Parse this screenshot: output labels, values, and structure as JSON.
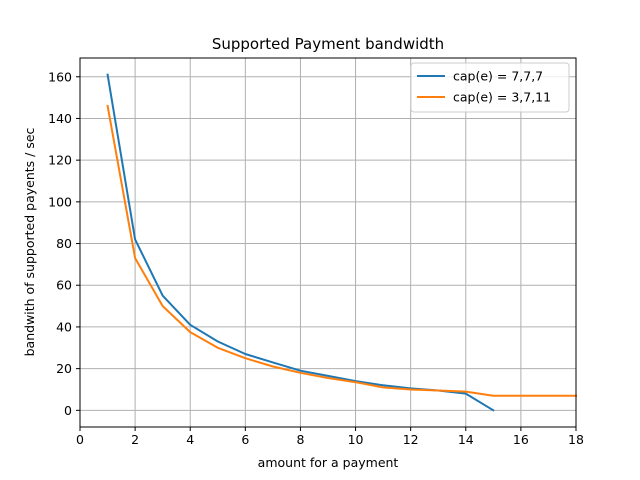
{
  "chart_data": {
    "type": "line",
    "title": "Supported Payment bandwidth",
    "xlabel": "amount for a payment",
    "ylabel": "bandwith of supported payents / sec",
    "xlim": [
      0,
      18
    ],
    "ylim": [
      -8,
      169
    ],
    "xticks": [
      0,
      2,
      4,
      6,
      8,
      10,
      12,
      14,
      16,
      18
    ],
    "yticks": [
      0,
      20,
      40,
      60,
      80,
      100,
      120,
      140,
      160
    ],
    "grid": true,
    "legend_position": "top-right",
    "series": [
      {
        "name": "cap(e) = 7,7,7",
        "color": "#1f77b4",
        "x": [
          1,
          2,
          3,
          4,
          5,
          6,
          7,
          8,
          9,
          10,
          11,
          12,
          13,
          14,
          15
        ],
        "y": [
          161,
          82,
          55,
          41,
          33,
          27,
          23,
          19,
          16.5,
          14,
          12,
          10.5,
          9.5,
          8,
          0
        ]
      },
      {
        "name": "cap(e) = 3,7,11",
        "color": "#ff7f0e",
        "x": [
          1,
          2,
          3,
          4,
          5,
          6,
          7,
          8,
          9,
          10,
          11,
          12,
          13,
          14,
          15,
          16,
          17,
          18
        ],
        "y": [
          146,
          73,
          50,
          37.5,
          30,
          25,
          21,
          18,
          15.5,
          13.5,
          11,
          10,
          9.5,
          9,
          7,
          7,
          7,
          7
        ]
      }
    ]
  }
}
